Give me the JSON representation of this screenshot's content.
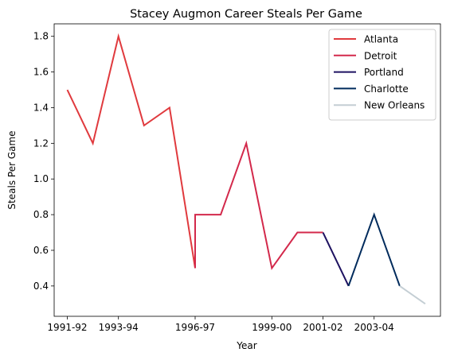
{
  "chart_data": {
    "type": "line",
    "title": "Stacey Augmon Career Steals Per Game",
    "xlabel": "Year",
    "ylabel": "Steals Per Game",
    "x_tick_labels": [
      "1991-92",
      "1993-94",
      "1996-97",
      "1999-00",
      "2001-02",
      "2003-04"
    ],
    "y_ticks": [
      0.4,
      0.6,
      0.8,
      1.0,
      1.2,
      1.4,
      1.6,
      1.8
    ],
    "y_tick_labels": [
      "0.4",
      "0.6",
      "0.8",
      "1.0",
      "1.2",
      "1.4",
      "1.6",
      "1.8"
    ],
    "ylim": [
      0.23,
      1.87
    ],
    "grid": false,
    "legend_position": "top-right",
    "series": [
      {
        "name": "Atlanta",
        "color": "#e03a3e",
        "points": [
          {
            "season": "1991-92",
            "value": 1.5
          },
          {
            "season": "1992-93",
            "value": 1.2
          },
          {
            "season": "1993-94",
            "value": 1.8
          },
          {
            "season": "1994-95",
            "value": 1.3
          },
          {
            "season": "1995-96",
            "value": 1.4
          },
          {
            "season": "1996-97",
            "value": 0.5
          }
        ]
      },
      {
        "name": "Detroit",
        "color": "#d3294b",
        "points": [
          {
            "season": "1996-97",
            "value": 0.5
          },
          {
            "season": "1996-97",
            "value": 0.8
          },
          {
            "season": "1997-98",
            "value": 0.8
          },
          {
            "season": "1998-99",
            "value": 1.2
          },
          {
            "season": "1999-00",
            "value": 0.5
          },
          {
            "season": "2000-01",
            "value": 0.7
          },
          {
            "season": "2001-02",
            "value": 0.7
          }
        ]
      },
      {
        "name": "Portland",
        "color": "#1d1160",
        "points": [
          {
            "season": "2001-02",
            "value": 0.7
          },
          {
            "season": "2002-03",
            "value": 0.4
          }
        ]
      },
      {
        "name": "Charlotte",
        "color": "#002b5c",
        "points": [
          {
            "season": "2002-03",
            "value": 0.4
          },
          {
            "season": "2003-04",
            "value": 0.8
          },
          {
            "season": "2004-05",
            "value": 0.4
          }
        ]
      },
      {
        "name": "New Orleans",
        "color": "#c4ced4",
        "points": [
          {
            "season": "2004-05",
            "value": 0.4
          },
          {
            "season": "2005-06",
            "value": 0.3
          }
        ]
      }
    ]
  }
}
